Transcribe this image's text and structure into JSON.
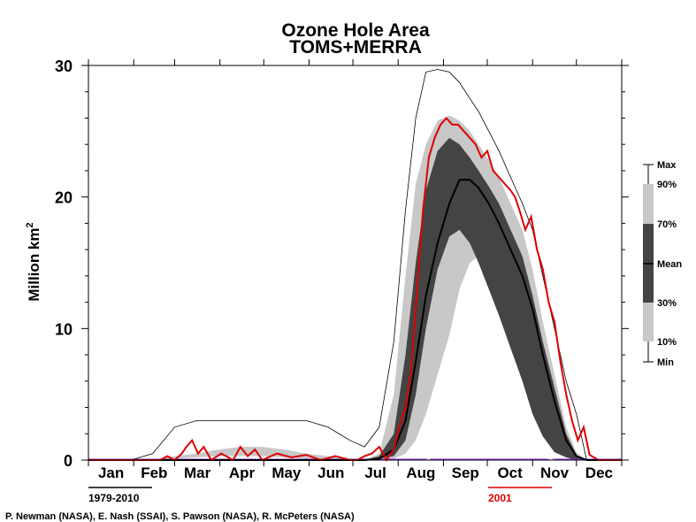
{
  "chart_data": {
    "type": "area",
    "title": "Ozone Hole Area",
    "subtitle": "TOMS+MERRA",
    "ylabel": "Million km",
    "ylabel_superscript": "2",
    "xlabel": "",
    "ylim": [
      0,
      30
    ],
    "xlim": [
      1,
      366
    ],
    "yticks": [
      "0",
      "10",
      "20",
      "30"
    ],
    "months": [
      "Jan",
      "Feb",
      "Mar",
      "Apr",
      "May",
      "Jun",
      "Jul",
      "Aug",
      "Sep",
      "Oct",
      "Nov",
      "Dec"
    ],
    "grid": false,
    "x_units": "day of year",
    "climatology": {
      "x": [
        1,
        30,
        45,
        60,
        75,
        90,
        105,
        120,
        135,
        150,
        165,
        180,
        190,
        200,
        210,
        218,
        225,
        232,
        240,
        248,
        255,
        262,
        268,
        275,
        282,
        290,
        298,
        305,
        312,
        320,
        328,
        335,
        342,
        350,
        358,
        366
      ],
      "min": [
        0,
        0,
        0,
        0,
        0,
        0,
        0,
        0,
        0,
        0,
        0,
        0,
        0,
        0,
        0,
        0,
        0,
        0,
        0.3,
        1.5,
        3.5,
        5,
        6,
        5.5,
        4.5,
        3.5,
        2,
        0.8,
        0.2,
        0,
        0,
        0,
        0,
        0,
        0,
        0
      ],
      "p10": [
        0,
        0,
        0,
        0.1,
        0.2,
        0.3,
        0.3,
        0.3,
        0.2,
        0.1,
        0,
        0,
        0,
        0,
        0.1,
        0.5,
        1.5,
        3.5,
        6.5,
        9.5,
        13,
        15,
        15.5,
        15,
        13,
        10,
        7.5,
        5.5,
        3.5,
        1.5,
        0.5,
        0.1,
        0,
        0,
        0,
        0
      ],
      "p30": [
        0,
        0,
        0,
        0,
        0,
        0,
        0,
        0,
        0,
        0,
        0,
        0,
        0,
        0.1,
        0.3,
        1.5,
        5,
        10,
        14.5,
        17,
        17.5,
        16.5,
        15,
        13,
        11,
        8.5,
        6,
        3.5,
        1.8,
        0.6,
        0.2,
        0,
        0,
        0,
        0,
        0
      ],
      "mean": [
        0,
        0,
        0,
        0,
        0,
        0,
        0,
        0,
        0,
        0,
        0,
        0,
        0,
        0.1,
        0.8,
        3,
        7.5,
        12.5,
        16.5,
        19.5,
        21.3,
        21.3,
        20.7,
        19.5,
        18,
        16,
        14,
        11.5,
        8,
        4.5,
        1.5,
        0.3,
        0,
        0,
        0,
        0
      ],
      "p70": [
        0,
        0,
        0,
        0,
        0,
        0,
        0,
        0,
        0,
        0,
        0,
        0,
        0,
        0.3,
        2,
        8,
        15,
        20.5,
        23.5,
        24.5,
        24,
        23,
        22,
        20.8,
        19.5,
        17.5,
        15.5,
        12.5,
        9,
        5.5,
        2,
        0.4,
        0,
        0,
        0,
        0
      ],
      "p90": [
        0,
        0,
        0,
        0.3,
        0.5,
        0.8,
        1,
        1,
        0.8,
        0.5,
        0.3,
        0.1,
        0,
        0.5,
        5,
        14,
        21,
        24,
        25.8,
        26.2,
        25.8,
        25,
        24,
        22.8,
        21.5,
        19.5,
        17.5,
        14.5,
        10.5,
        6.5,
        2.5,
        0.6,
        0,
        0,
        0,
        0
      ],
      "max": [
        0,
        0,
        0.5,
        2.5,
        3,
        3,
        3,
        3,
        3,
        3,
        2.5,
        1.5,
        1,
        2.5,
        9,
        19,
        26,
        29.5,
        29.7,
        29.5,
        28.7,
        27.5,
        26.5,
        25,
        23.5,
        21.5,
        19.5,
        17.5,
        14,
        10,
        6,
        3.5,
        0,
        0,
        0,
        0
      ]
    },
    "series": [
      {
        "name": "2001",
        "x": [
          1,
          40,
          50,
          55,
          60,
          65,
          68,
          72,
          76,
          80,
          85,
          92,
          100,
          105,
          110,
          115,
          120,
          130,
          140,
          150,
          160,
          170,
          180,
          185,
          190,
          195,
          200,
          205,
          210,
          215,
          218,
          222,
          226,
          230,
          234,
          238,
          242,
          246,
          250,
          254,
          258,
          262,
          266,
          270,
          274,
          278,
          282,
          286,
          290,
          293,
          296,
          300,
          304,
          308,
          312,
          316,
          320,
          324,
          328,
          332,
          336,
          340,
          344,
          350,
          366
        ],
        "y": [
          0,
          0,
          0,
          0.3,
          0,
          0.5,
          1,
          1.5,
          0.5,
          1,
          0,
          0.5,
          0,
          1,
          0.3,
          0.8,
          0,
          0.5,
          0.2,
          0.4,
          0,
          0.3,
          0,
          0,
          0.3,
          0.5,
          1,
          0,
          0.8,
          3,
          4,
          7,
          13,
          19,
          23,
          24.5,
          25.5,
          26,
          25.5,
          25.5,
          25,
          24.5,
          24,
          23,
          23.5,
          22,
          21.5,
          21,
          20.5,
          20,
          19,
          17.5,
          18.5,
          16,
          14.5,
          12,
          10.5,
          7.5,
          5,
          3,
          1.5,
          2.5,
          0.4,
          0,
          0
        ]
      }
    ],
    "key": [
      "Max",
      "90%",
      "70%",
      "Mean",
      "30%",
      "10%",
      "Min"
    ],
    "colors": {
      "band_outer": "#c8c8c8",
      "band_inner": "#444444",
      "mean": "#000000",
      "series_2001": "#dd0000",
      "baseline": "#8a2be2"
    },
    "period_labels": {
      "climatology": "1979-2010",
      "highlight": "2001"
    }
  },
  "credit": "P. Newman (NASA), E. Nash (SSAI), S. Pawson (NASA), R. McPeters (NASA)"
}
